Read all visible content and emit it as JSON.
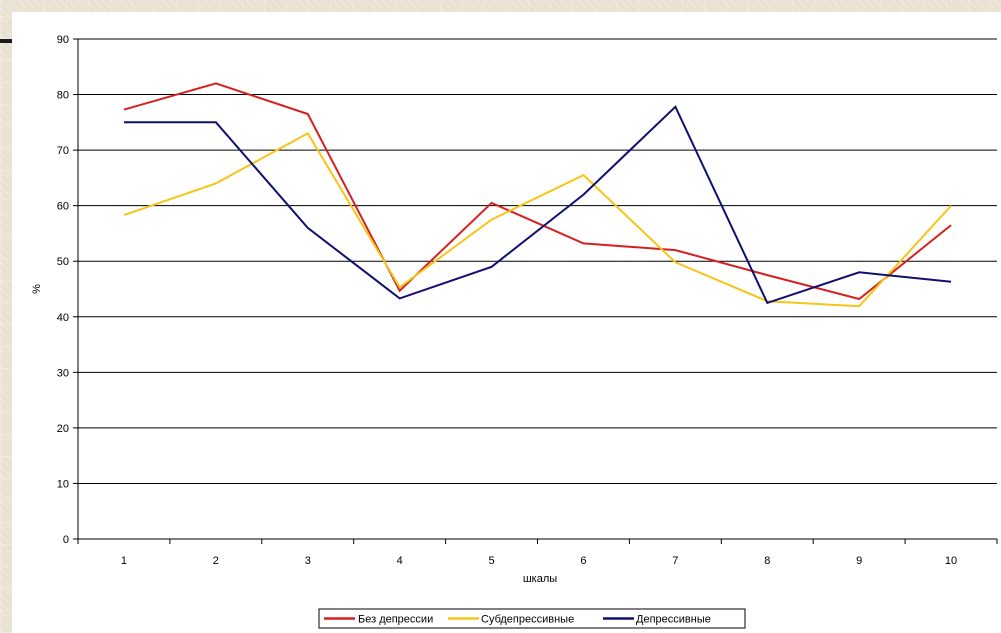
{
  "chart_data": {
    "type": "line",
    "title": "",
    "xlabel": "шкалы",
    "ylabel": "%",
    "x": [
      "1",
      "2",
      "3",
      "4",
      "5",
      "6",
      "7",
      "8",
      "9",
      "10"
    ],
    "ylim": [
      0,
      90
    ],
    "yticks": [
      "0",
      "10",
      "20",
      "30",
      "40",
      "50",
      "60",
      "70",
      "80",
      "90"
    ],
    "grid": true,
    "legend_position": "bottom",
    "series": [
      {
        "name": "Без депрессии",
        "color": "#d62020",
        "values": [
          77.3,
          82,
          76.5,
          44.7,
          60.5,
          53.2,
          52,
          47.5,
          43.2,
          56.5
        ]
      },
      {
        "name": "Субдепрессивные",
        "color": "#f5c518",
        "values": [
          58.3,
          64,
          73,
          45.3,
          57.5,
          65.5,
          49.8,
          42.8,
          41.9,
          60
        ]
      },
      {
        "name": "Депрессивные",
        "color": "#101070",
        "values": [
          75,
          75,
          56,
          43.3,
          49,
          62,
          77.8,
          42.5,
          48,
          46.3
        ]
      }
    ]
  }
}
